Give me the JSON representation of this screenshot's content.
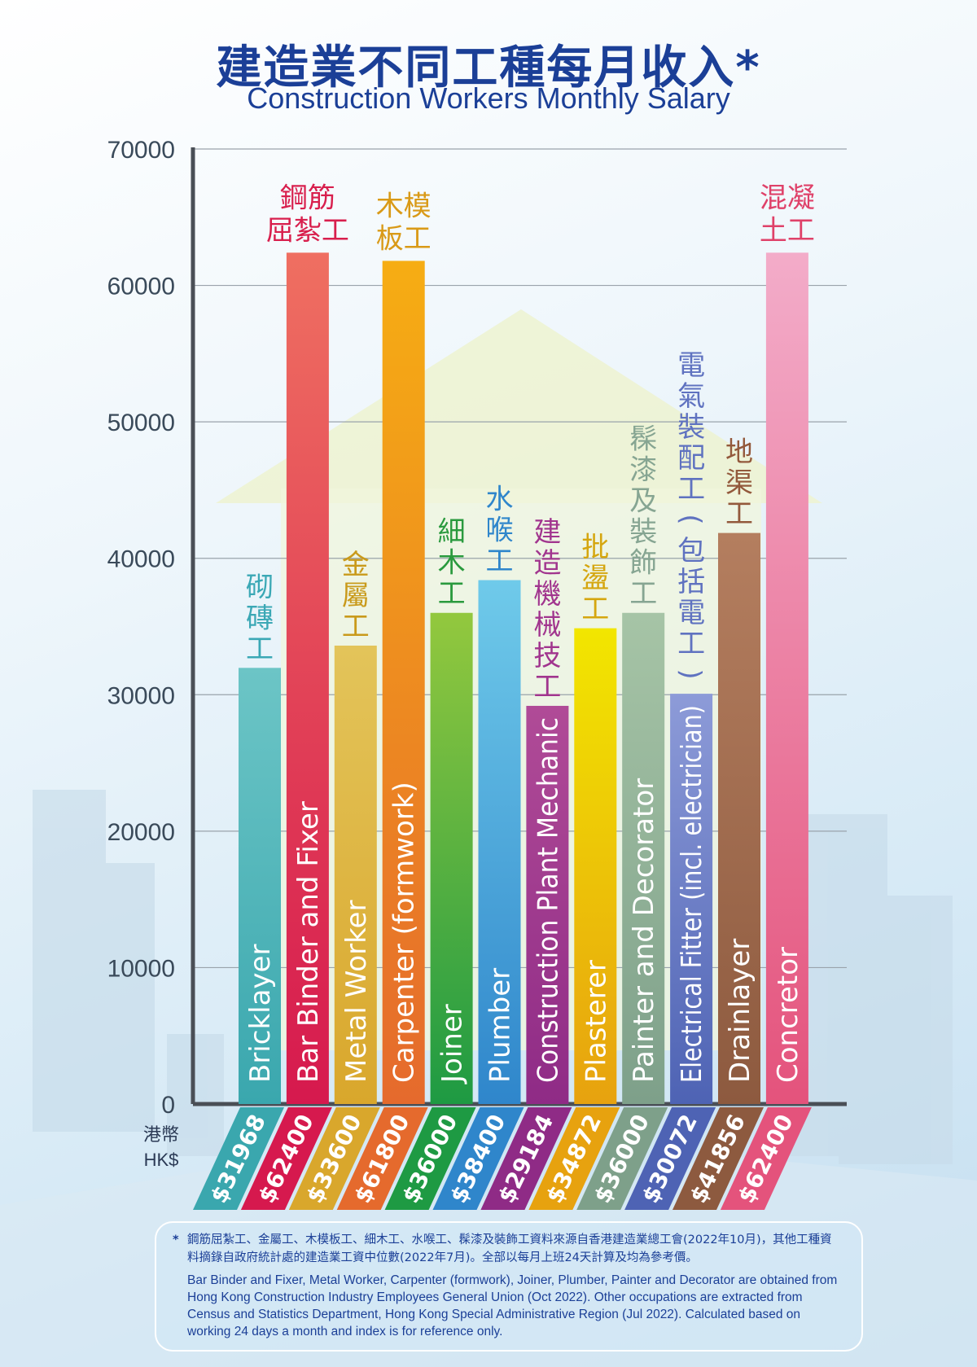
{
  "chart_data": {
    "type": "bar",
    "title": "建造業不同工種每月收入*",
    "subtitle": "Construction Workers Monthly Salary",
    "ylim": [
      0,
      70000
    ],
    "yticks": [
      0,
      10000,
      20000,
      30000,
      40000,
      50000,
      60000,
      70000
    ],
    "currency_label_zh": "港幣",
    "currency_label_en": "HK$",
    "grid": true,
    "categories": [
      {
        "zh": "砌磚工",
        "en": "Bricklayer",
        "value": 31968,
        "value_label": "$31968",
        "color": "#6cc5c6",
        "bottom_color": "#3aa7ae",
        "zh_color": "#3ba8b5"
      },
      {
        "zh": "鋼筋屈紮工",
        "en": "Bar Binder and Fixer",
        "value": 62400,
        "value_label": "$62400",
        "color": "#ef6f61",
        "bottom_color": "#d6194e",
        "zh_color": "#d81f4d"
      },
      {
        "zh": "金屬工",
        "en": "Metal Worker",
        "value": 33600,
        "value_label": "$33600",
        "color": "#e3c45a",
        "bottom_color": "#d9a72c",
        "zh_color": "#c99a1b"
      },
      {
        "zh": "木模板工",
        "en": "Carpenter (formwork)",
        "value": 61800,
        "value_label": "$61800",
        "color": "#f6ad13",
        "bottom_color": "#e56a2d",
        "zh_color": "#d99a17"
      },
      {
        "zh": "細木工",
        "en": "Joiner",
        "value": 36000,
        "value_label": "$36000",
        "color": "#93c83e",
        "bottom_color": "#1e9a43",
        "zh_color": "#2a9a3e"
      },
      {
        "zh": "水喉工",
        "en": "Plumber",
        "value": 38400,
        "value_label": "$38400",
        "color": "#6fcaea",
        "bottom_color": "#2f86cb",
        "zh_color": "#2f86cb"
      },
      {
        "zh": "建造機械技工",
        "en": "Construction Plant Mechanic",
        "value": 29184,
        "value_label": "$29184",
        "color": "#b04b97",
        "bottom_color": "#8f2b86",
        "zh_color": "#a1358e"
      },
      {
        "zh": "批盪工",
        "en": "Plasterer",
        "value": 34872,
        "value_label": "$34872",
        "color": "#f2e600",
        "bottom_color": "#e7a20f",
        "zh_color": "#d5a60f"
      },
      {
        "zh": "髹漆及裝飾工",
        "en": "Painter and Decorator",
        "value": 36000,
        "value_label": "$36000",
        "color": "#a6c4a6",
        "bottom_color": "#7ea08a",
        "zh_color": "#86a592"
      },
      {
        "zh": "電氣裝配工(包括電工)",
        "en": "Electrical Fitter (incl. electrician)",
        "value": 30072,
        "value_label": "$30072",
        "color": "#8d9bd8",
        "bottom_color": "#4e63b4",
        "zh_color": "#5f72c0"
      },
      {
        "zh": "地渠工",
        "en": "Drainlayer",
        "value": 41856,
        "value_label": "$41856",
        "color": "#b47e5f",
        "bottom_color": "#8d5a3f",
        "zh_color": "#93593c"
      },
      {
        "zh": "混凝土工",
        "en": "Concretor",
        "value": 62400,
        "value_label": "$62400",
        "color": "#f3acc9",
        "bottom_color": "#e4537c",
        "zh_color": "#df4169"
      }
    ]
  },
  "footnote": {
    "zh": "鋼筋屈紮工、金屬工、木模板工、細木工、水喉工、髹漆及裝飾工資料來源自香港建造業總工會(2022年10月)，其他工種資料摘錄自政府統計處的建造業工資中位數(2022年7月)。全部以每月上班24天計算及均為參考價。",
    "en": "Bar Binder and Fixer, Metal Worker, Carpenter (formwork), Joiner, Plumber, Painter and Decorator are obtained from Hong Kong Construction Industry Employees General Union (Oct 2022). Other occupations are extracted from Census and Statistics Department, Hong Kong Special Administrative Region (Jul 2022). Calculated based on working 24 days a month and index is for reference only."
  }
}
